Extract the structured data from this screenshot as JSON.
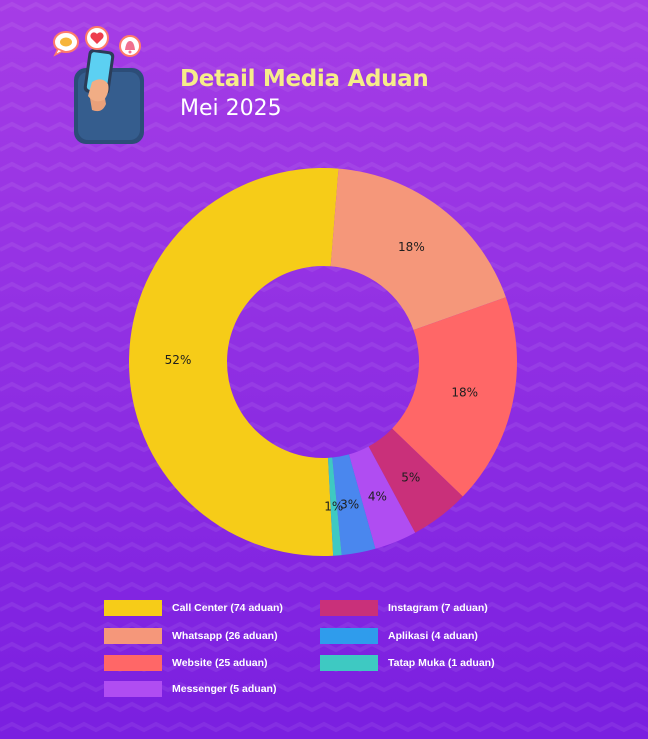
{
  "header": {
    "title": "Detail Media Aduan",
    "subtitle": "Mei 2025"
  },
  "colors": {
    "title": "#f6ec8a",
    "background_top": "#a63de6",
    "background_bottom": "#7a1fe0"
  },
  "chart_data": {
    "type": "pie",
    "variant": "donut",
    "start_angle_deg": 87,
    "categories": [
      "Call Center",
      "Whatsapp",
      "Website",
      "Instagram",
      "Messenger",
      "Aplikasi",
      "Tatap Muka"
    ],
    "values": [
      74,
      26,
      25,
      7,
      5,
      4,
      1
    ],
    "data_labels": [
      "52%",
      "18%",
      "18%",
      "5%",
      "4%",
      "3%",
      "1%"
    ],
    "colors": [
      "#f6cc18",
      "#f5977a",
      "#ff6767",
      "#c9307a",
      "#b04df2",
      "#4a87ee",
      "#3ec9c2"
    ],
    "legend_position": "bottom",
    "legend": [
      "Call Center (74 aduan)",
      "Whatsapp (26 aduan)",
      "Website (25 aduan)",
      "Messenger (5 aduan)",
      "Instagram (7 aduan)",
      "Aplikasi (4 aduan)",
      "Tatap Muka (1 aduan)"
    ],
    "legend_colors": [
      "#f6cc18",
      "#f5977a",
      "#ff6767",
      "#b04df2",
      "#c9307a",
      "#2f9cec",
      "#3ec9c2"
    ]
  }
}
